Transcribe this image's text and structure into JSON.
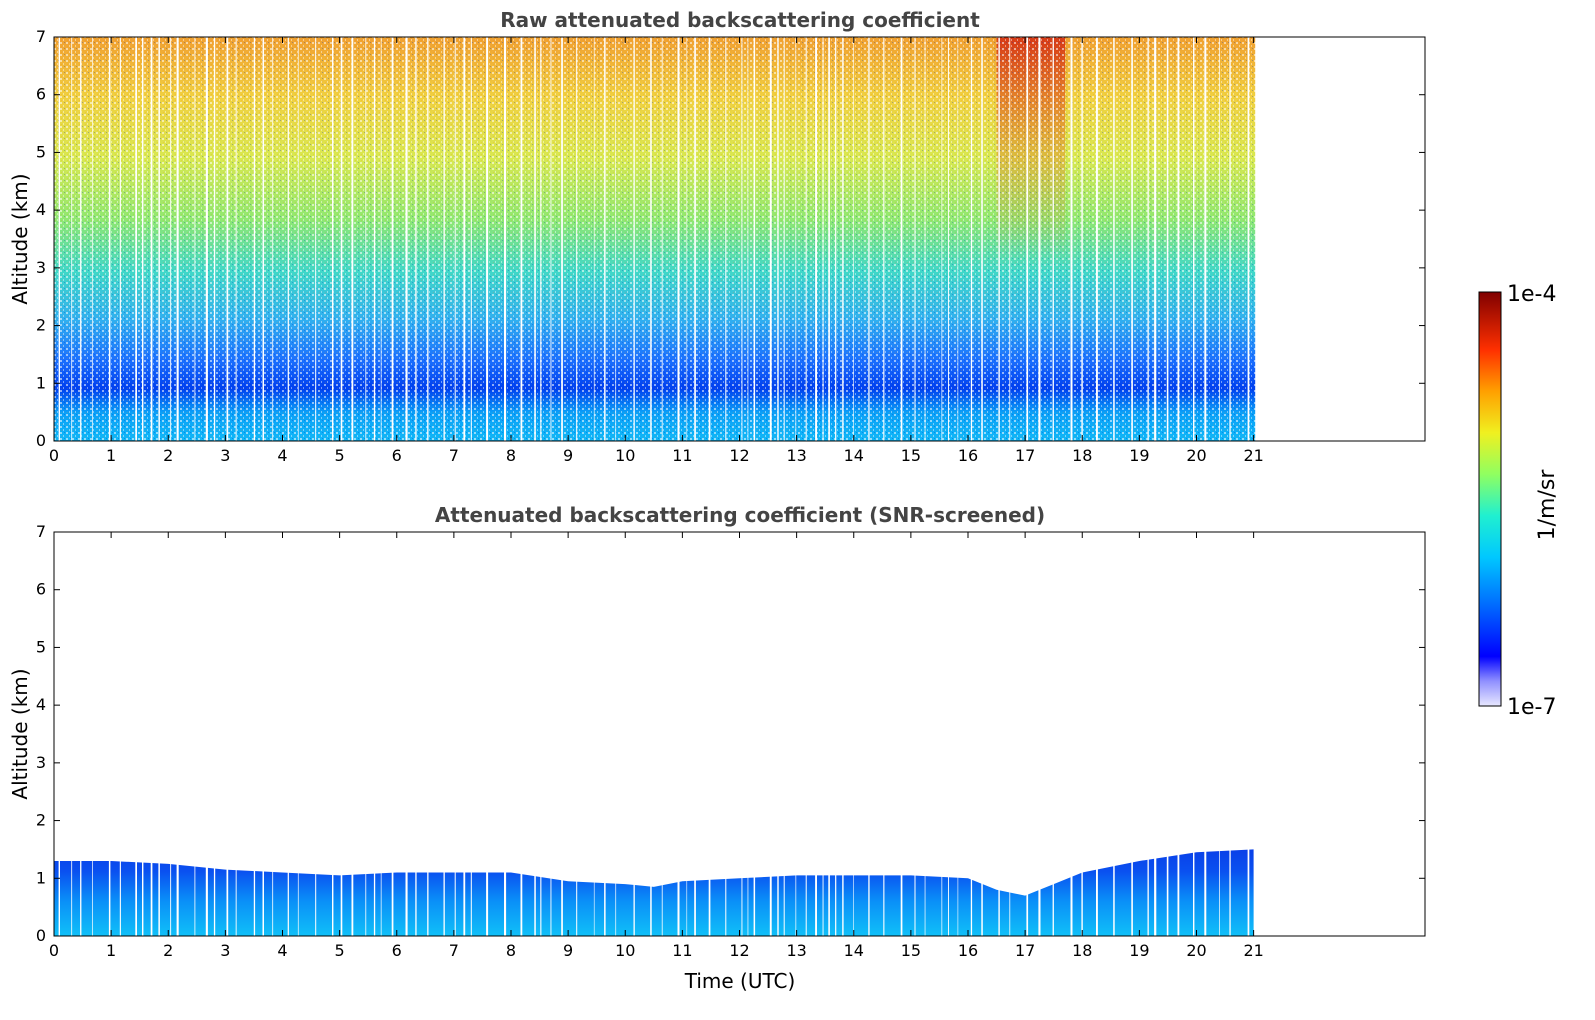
{
  "chart_data": [
    {
      "type": "heatmap",
      "title": "Raw attenuated backscattering coefficient",
      "xlabel": "",
      "ylabel": "Altitude (km)",
      "xlim": [
        0,
        24
      ],
      "ylim": [
        0,
        7
      ],
      "x_ticks": [
        "0",
        "1",
        "2",
        "3",
        "4",
        "5",
        "6",
        "7",
        "8",
        "9",
        "10",
        "11",
        "12",
        "13",
        "14",
        "15",
        "16",
        "17",
        "18",
        "19",
        "20",
        "21"
      ],
      "y_ticks": [
        "0",
        "1",
        "2",
        "3",
        "4",
        "5",
        "6",
        "7"
      ],
      "data_extent_x": [
        0,
        21.05
      ],
      "description_fields": {
        "boundary_layer_top_km": 1.0,
        "high_signal_event_hours": [
          16.5,
          17.7
        ]
      }
    },
    {
      "type": "heatmap",
      "title": "Attenuated backscattering coefficient (SNR-screened)",
      "xlabel": "Time (UTC)",
      "ylabel": "Altitude (km)",
      "xlim": [
        0,
        24
      ],
      "ylim": [
        0,
        7
      ],
      "x_ticks": [
        "0",
        "1",
        "2",
        "3",
        "4",
        "5",
        "6",
        "7",
        "8",
        "9",
        "10",
        "11",
        "12",
        "13",
        "14",
        "15",
        "16",
        "17",
        "18",
        "19",
        "20",
        "21"
      ],
      "y_ticks": [
        "0",
        "1",
        "2",
        "3",
        "4",
        "5",
        "6",
        "7"
      ],
      "data_extent_x": [
        0,
        21.05
      ],
      "layer_top": {
        "x": [
          0,
          1,
          2,
          3,
          4,
          5,
          6,
          7,
          8,
          9,
          10,
          10.5,
          11,
          12,
          13,
          14,
          15,
          16,
          16.5,
          17,
          17.5,
          18,
          19,
          20,
          21
        ],
        "y": [
          1.3,
          1.3,
          1.25,
          1.15,
          1.1,
          1.05,
          1.1,
          1.1,
          1.1,
          0.95,
          0.9,
          0.85,
          0.95,
          1.0,
          1.05,
          1.05,
          1.05,
          1.0,
          0.8,
          0.7,
          0.9,
          1.1,
          1.3,
          1.45,
          1.5
        ]
      }
    }
  ],
  "colorbar": {
    "label": "1/m/sr",
    "max_label": "1e-4",
    "min_label": "1e-7",
    "scale": "log",
    "colormap": [
      "#ffffff",
      "#c8c8ff",
      "#0000ff",
      "#0080ff",
      "#00d8ff",
      "#40ffb0",
      "#b0ff40",
      "#ffe000",
      "#ff8000",
      "#ff2000",
      "#800000"
    ]
  }
}
